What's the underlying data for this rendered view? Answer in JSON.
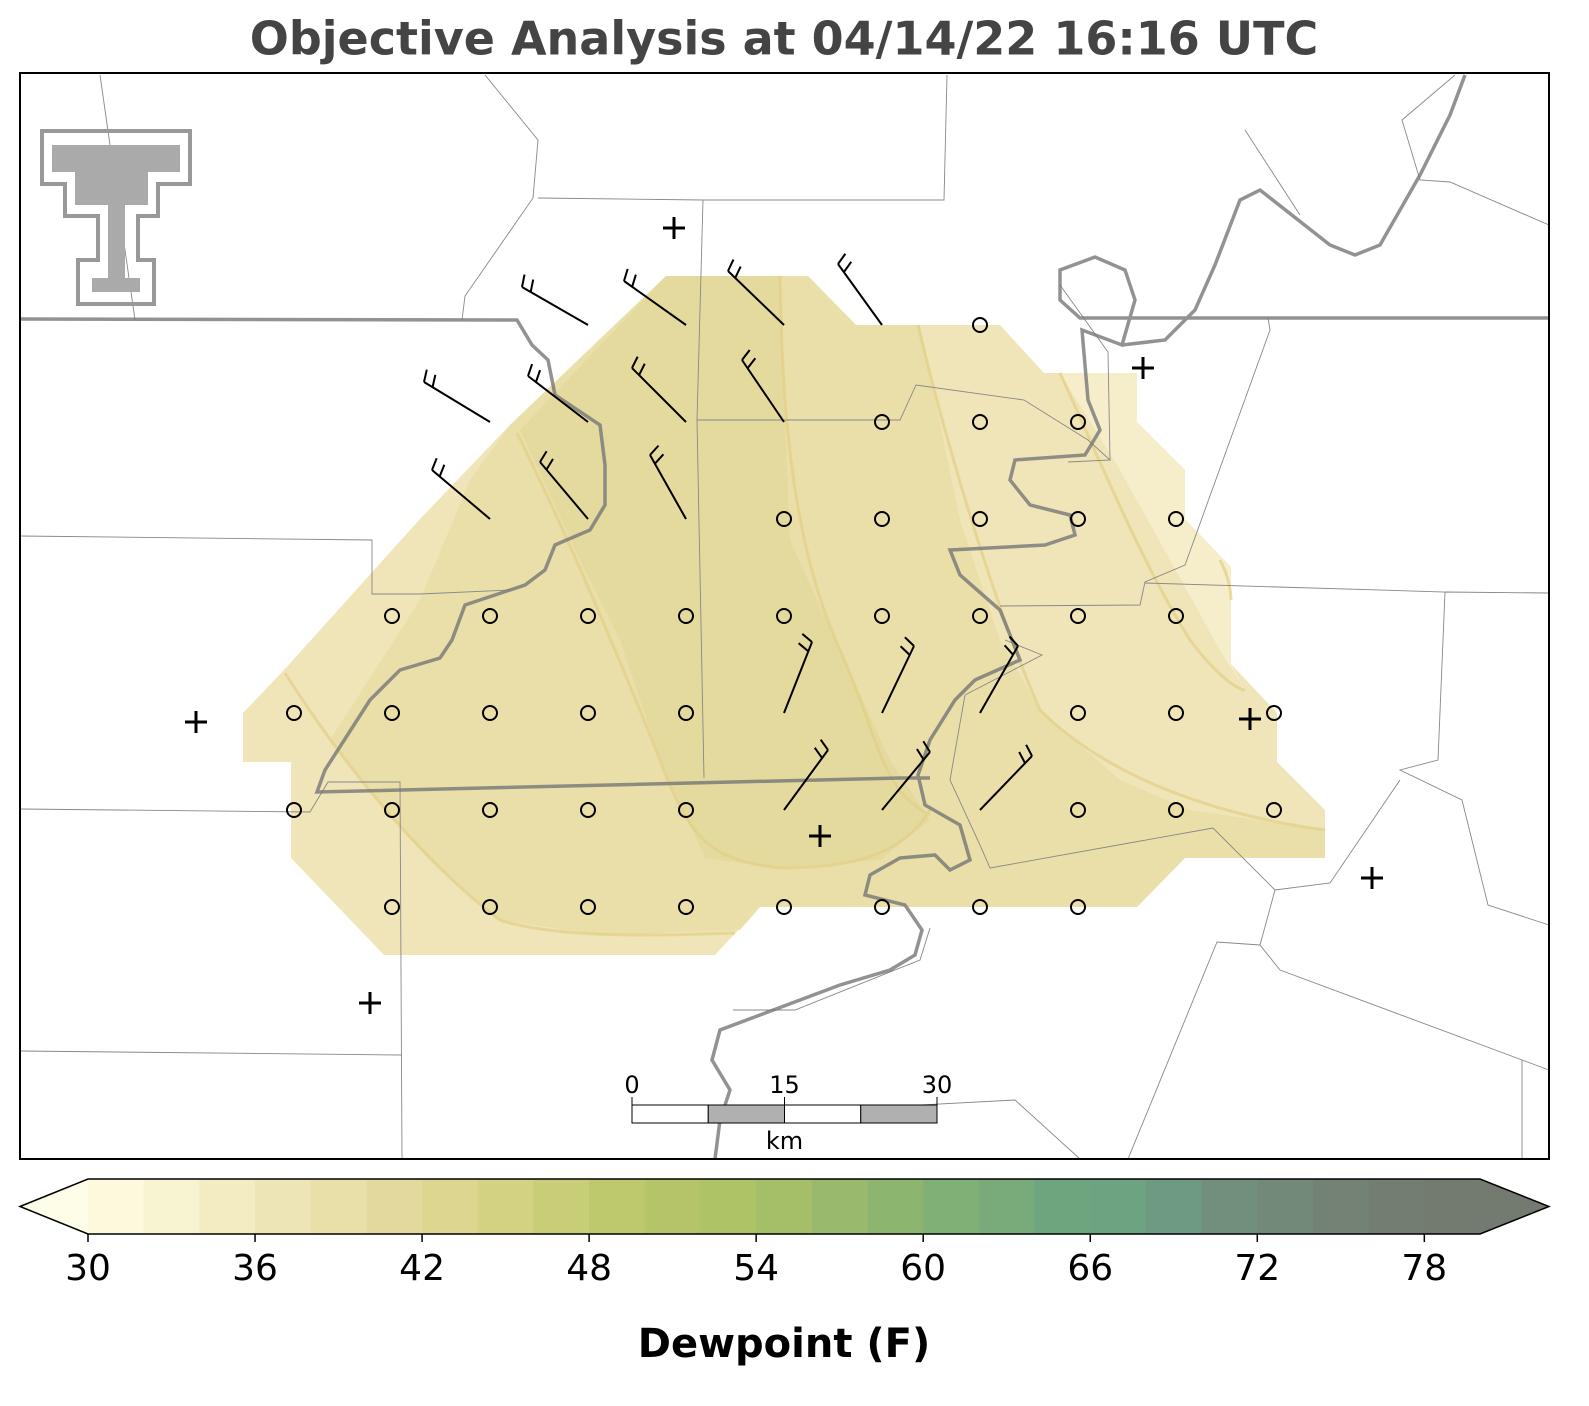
{
  "title": "Objective Analysis at 04/14/22 16:16 UTC",
  "scale_bar": {
    "ticks": [
      0,
      15,
      30
    ],
    "unit": "km"
  },
  "colorbar": {
    "label": "Dewpoint (F)",
    "lim": [
      30,
      80
    ],
    "ticks": [
      30,
      36,
      42,
      48,
      54,
      60,
      66,
      72,
      78
    ],
    "colors": [
      "#fcf9dc",
      "#f8f3d0",
      "#f3ecc3",
      "#eee5b6",
      "#e9dfa9",
      "#e4d99c",
      "#dcd690",
      "#d2d282",
      "#c8ce78",
      "#bec96e",
      "#b5c468",
      "#aec266",
      "#a5bf68",
      "#99ba6c",
      "#8cb570",
      "#80b075",
      "#78aa7a",
      "#6ea57f",
      "#6ea382",
      "#6d9a80",
      "#70907c",
      "#728878",
      "#738274",
      "#747d71",
      "#737a6f"
    ],
    "under_color": "#fefde8",
    "over_color": "#737a6f"
  }
}
